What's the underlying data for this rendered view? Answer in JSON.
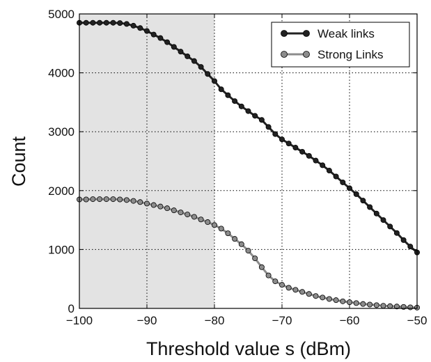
{
  "chart_data": {
    "type": "line",
    "xlabel": "Threshold value s  (dBm)",
    "ylabel": "Count",
    "xlim": [
      -100,
      -50
    ],
    "ylim": [
      0,
      5000
    ],
    "xticks": [
      -100,
      -90,
      -80,
      -70,
      -60,
      -50
    ],
    "yticks": [
      0,
      1000,
      2000,
      3000,
      4000,
      5000
    ],
    "xtick_labels": [
      "−100",
      "−90",
      "−80",
      "−70",
      "−60",
      "−50"
    ],
    "ytick_labels": [
      "0",
      "1000",
      "2000",
      "3000",
      "4000",
      "5000"
    ],
    "grid": true,
    "legend_position": "top-right",
    "shaded_region": {
      "x": [
        -100,
        -80
      ],
      "color": "#e3e3e3"
    },
    "x": [
      -100,
      -99,
      -98,
      -97,
      -96,
      -95,
      -94,
      -93,
      -92,
      -91,
      -90,
      -89,
      -88,
      -87,
      -86,
      -85,
      -84,
      -83,
      -82,
      -81,
      -80,
      -79,
      -78,
      -77,
      -76,
      -75,
      -74,
      -73,
      -72,
      -71,
      -70,
      -69,
      -68,
      -67,
      -66,
      -65,
      -64,
      -63,
      -62,
      -61,
      -60,
      -59,
      -58,
      -57,
      -56,
      -55,
      -54,
      -53,
      -52,
      -51,
      -50
    ],
    "series": [
      {
        "name": "Weak links",
        "color": "#222222",
        "values": [
          4850,
          4850,
          4850,
          4850,
          4850,
          4850,
          4845,
          4830,
          4800,
          4760,
          4710,
          4650,
          4590,
          4520,
          4440,
          4360,
          4280,
          4200,
          4100,
          3980,
          3860,
          3720,
          3620,
          3520,
          3430,
          3350,
          3270,
          3200,
          3080,
          2960,
          2870,
          2800,
          2730,
          2660,
          2590,
          2510,
          2430,
          2340,
          2240,
          2140,
          2040,
          1940,
          1830,
          1720,
          1610,
          1500,
          1390,
          1280,
          1160,
          1050,
          950
        ]
      },
      {
        "name": "Strong Links",
        "color": "#8c8c8c",
        "values": [
          1850,
          1850,
          1855,
          1855,
          1855,
          1855,
          1850,
          1840,
          1825,
          1805,
          1780,
          1755,
          1730,
          1700,
          1665,
          1630,
          1595,
          1555,
          1510,
          1465,
          1415,
          1355,
          1275,
          1180,
          1090,
          980,
          850,
          700,
          560,
          460,
          400,
          350,
          315,
          280,
          245,
          210,
          185,
          160,
          140,
          120,
          105,
          90,
          75,
          65,
          55,
          45,
          38,
          32,
          25,
          18,
          14
        ]
      }
    ]
  }
}
